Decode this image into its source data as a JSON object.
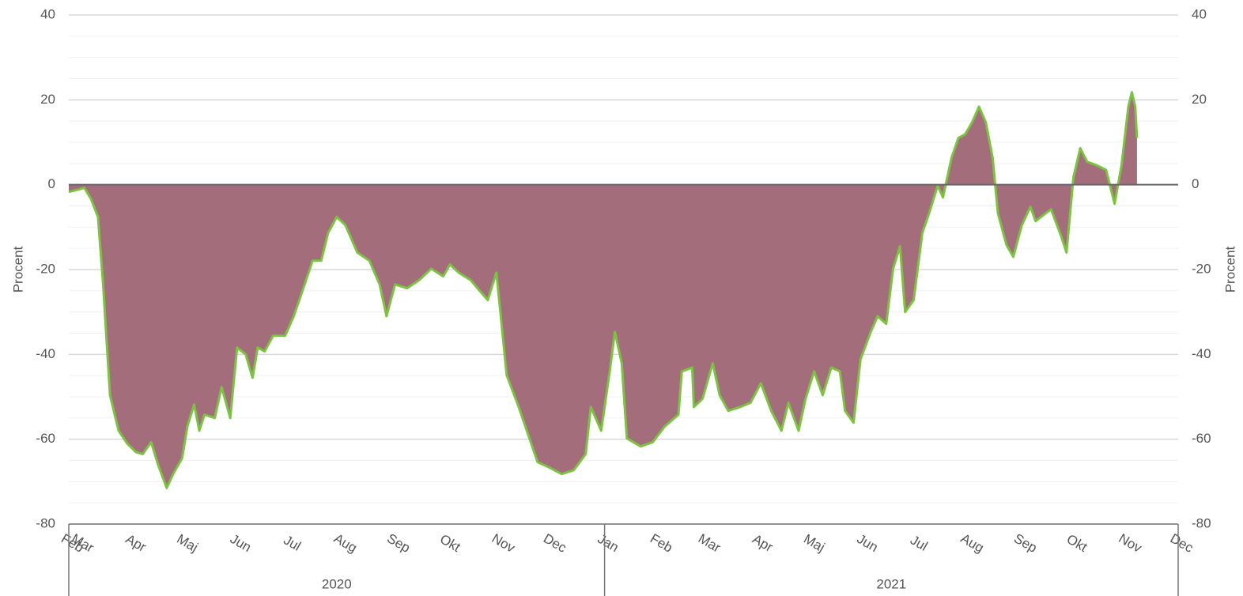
{
  "chart_data": {
    "type": "area",
    "ylabel": "Procent",
    "y2label": "Procent",
    "ylim": [
      -80,
      40
    ],
    "yticks": [
      -80,
      -60,
      -40,
      -20,
      0,
      20,
      40
    ],
    "y2lim": [
      -80,
      40
    ],
    "y2ticks": [
      -80,
      -60,
      -40,
      -20,
      0,
      20,
      40
    ],
    "grid": true,
    "minor_ticks_per_major": 4,
    "zero_line": true,
    "xlim": [
      "2020-02-24",
      "2021-12-01"
    ],
    "xticks": [
      {
        "value": "2020-02-24",
        "label": "Feb"
      },
      {
        "value": "2020-03-01",
        "label": "Mar"
      },
      {
        "value": "2020-04-01",
        "label": "Apr"
      },
      {
        "value": "2020-05-01",
        "label": "Maj"
      },
      {
        "value": "2020-06-01",
        "label": "Jun"
      },
      {
        "value": "2020-07-01",
        "label": "Jul"
      },
      {
        "value": "2020-08-01",
        "label": "Aug"
      },
      {
        "value": "2020-09-01",
        "label": "Sep"
      },
      {
        "value": "2020-10-01",
        "label": "Okt"
      },
      {
        "value": "2020-11-01",
        "label": "Nov"
      },
      {
        "value": "2020-12-01",
        "label": "Dec"
      },
      {
        "value": "2021-01-01",
        "label": "Jan"
      },
      {
        "value": "2021-02-01",
        "label": "Feb"
      },
      {
        "value": "2021-03-01",
        "label": "Mar"
      },
      {
        "value": "2021-04-01",
        "label": "Apr"
      },
      {
        "value": "2021-05-01",
        "label": "Maj"
      },
      {
        "value": "2021-06-01",
        "label": "Jun"
      },
      {
        "value": "2021-07-01",
        "label": "Jul"
      },
      {
        "value": "2021-08-01",
        "label": "Aug"
      },
      {
        "value": "2021-09-01",
        "label": "Sep"
      },
      {
        "value": "2021-10-01",
        "label": "Okt"
      },
      {
        "value": "2021-11-01",
        "label": "Nov"
      },
      {
        "value": "2021-12-01",
        "label": "Dec"
      }
    ],
    "x_groups": [
      "2020",
      "2021"
    ],
    "x": [
      "2020-02-24",
      "2020-03-01",
      "2020-03-04",
      "2020-03-08",
      "2020-03-12",
      "2020-03-15",
      "2020-03-19",
      "2020-03-24",
      "2020-03-29",
      "2020-04-03",
      "2020-04-07",
      "2020-04-12",
      "2020-04-16",
      "2020-04-21",
      "2020-04-25",
      "2020-04-30",
      "2020-05-03",
      "2020-05-07",
      "2020-05-10",
      "2020-05-13",
      "2020-05-19",
      "2020-05-23",
      "2020-05-28",
      "2020-06-01",
      "2020-06-06",
      "2020-06-10",
      "2020-06-13",
      "2020-06-17",
      "2020-06-22",
      "2020-06-29",
      "2020-07-04",
      "2020-07-08",
      "2020-07-15",
      "2020-07-20",
      "2020-07-24",
      "2020-07-29",
      "2020-08-03",
      "2020-08-10",
      "2020-08-17",
      "2020-08-23",
      "2020-08-27",
      "2020-09-01",
      "2020-09-08",
      "2020-09-15",
      "2020-09-22",
      "2020-09-29",
      "2020-10-03",
      "2020-10-08",
      "2020-10-15",
      "2020-10-19",
      "2020-10-25",
      "2020-10-30",
      "2020-11-05",
      "2020-11-12",
      "2020-11-19",
      "2020-11-23",
      "2020-11-30",
      "2020-12-07",
      "2020-12-14",
      "2020-12-21",
      "2020-12-24",
      "2020-12-30",
      "2021-01-04",
      "2021-01-07",
      "2021-01-11",
      "2021-01-14",
      "2021-01-22",
      "2021-01-29",
      "2021-02-05",
      "2021-02-13",
      "2021-02-15",
      "2021-02-21",
      "2021-02-22",
      "2021-02-27",
      "2021-03-05",
      "2021-03-09",
      "2021-03-14",
      "2021-03-21",
      "2021-03-27",
      "2021-04-02",
      "2021-04-08",
      "2021-04-14",
      "2021-04-18",
      "2021-04-24",
      "2021-04-28",
      "2021-05-03",
      "2021-05-08",
      "2021-05-13",
      "2021-05-18",
      "2021-05-21",
      "2021-05-26",
      "2021-05-30",
      "2021-06-05",
      "2021-06-09",
      "2021-06-14",
      "2021-06-18",
      "2021-06-22",
      "2021-06-25",
      "2021-06-30",
      "2021-07-05",
      "2021-07-09",
      "2021-07-14",
      "2021-07-17",
      "2021-07-22",
      "2021-07-26",
      "2021-07-30",
      "2021-08-03",
      "2021-08-07",
      "2021-08-11",
      "2021-08-15",
      "2021-08-18",
      "2021-08-23",
      "2021-08-27",
      "2021-09-01",
      "2021-09-06",
      "2021-09-09",
      "2021-09-15",
      "2021-09-18",
      "2021-09-24",
      "2021-09-27",
      "2021-10-01",
      "2021-10-05",
      "2021-10-09",
      "2021-10-15",
      "2021-10-20",
      "2021-10-25",
      "2021-10-29",
      "2021-11-02",
      "2021-11-04",
      "2021-11-06",
      "2021-11-07"
    ],
    "series": [
      {
        "name": "Procent",
        "color": "#a06878",
        "line_color": "#7dc242",
        "values": [
          -1.7,
          -1.1,
          -0.7,
          -3.4,
          -7.6,
          -23.5,
          -49.6,
          -58,
          -61,
          -63,
          -63.5,
          -60.7,
          -66,
          -71.5,
          -68,
          -64.5,
          -57,
          -51.8,
          -58,
          -54.2,
          -55,
          -47.7,
          -55,
          -38.4,
          -40,
          -45.5,
          -38.4,
          -39.3,
          -35.6,
          -35.6,
          -31,
          -26.3,
          -17.9,
          -17.9,
          -11.4,
          -7.6,
          -9.5,
          -16,
          -17.9,
          -23.5,
          -31,
          -23.5,
          -24.4,
          -22.5,
          -19.8,
          -21.6,
          -18.8,
          -20.7,
          -22.5,
          -24.4,
          -27.2,
          -20.7,
          -44.9,
          -52.4,
          -60.7,
          -65.4,
          -66.7,
          -68.2,
          -67.3,
          -63.5,
          -52.4,
          -58,
          -44,
          -34.7,
          -42.1,
          -59.8,
          -61.7,
          -60.7,
          -57,
          -54.2,
          -44,
          -43.1,
          -52.4,
          -50.5,
          -42.1,
          -49.6,
          -53.3,
          -52.4,
          -51.4,
          -46.8,
          -53.3,
          -58,
          -51.4,
          -58,
          -50.5,
          -44,
          -49.6,
          -43.1,
          -44,
          -53.3,
          -56.1,
          -41.2,
          -34.7,
          -31,
          -32.8,
          -19.8,
          -14.5,
          -30,
          -27.2,
          -11.4,
          -6.7,
          -0.2,
          -3,
          6.3,
          11,
          11.9,
          14.7,
          18.4,
          14.7,
          6.3,
          -6.7,
          -14.2,
          -17,
          -9.5,
          -5.2,
          -8.6,
          -6.7,
          -5.8,
          -12.3,
          -16,
          1.7,
          8.6,
          5.4,
          4.5,
          3.5,
          -4.5,
          4.5,
          18.4,
          21.8,
          18.4,
          11
        ]
      }
    ]
  }
}
